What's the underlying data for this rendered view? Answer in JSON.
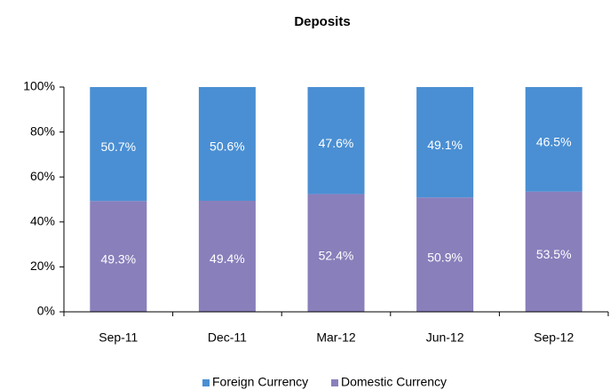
{
  "chart_data": {
    "type": "stacked_bar",
    "title": "Deposits",
    "categories": [
      "Sep-11",
      "Dec-11",
      "Mar-12",
      "Jun-12",
      "Sep-12"
    ],
    "series": [
      {
        "name": "Foreign Currency",
        "color": "#4a8fd3",
        "values": [
          50.7,
          50.6,
          47.6,
          49.1,
          46.5
        ],
        "value_labels": [
          "50.7%",
          "50.6%",
          "47.6%",
          "49.1%",
          "46.5%"
        ]
      },
      {
        "name": "Domestic Currency",
        "color": "#897fbb",
        "values": [
          49.3,
          49.4,
          52.4,
          50.9,
          53.5
        ],
        "value_labels": [
          "49.3%",
          "49.4%",
          "52.4%",
          "50.9%",
          "53.5%"
        ]
      }
    ],
    "ylim": [
      0,
      100
    ],
    "yticks": [
      {
        "value": 0,
        "label": "0%"
      },
      {
        "value": 20,
        "label": "20%"
      },
      {
        "value": 40,
        "label": "40%"
      },
      {
        "value": 60,
        "label": "60%"
      },
      {
        "value": 80,
        "label": "80%"
      },
      {
        "value": 100,
        "label": "100%"
      }
    ],
    "legend": "bottom"
  }
}
